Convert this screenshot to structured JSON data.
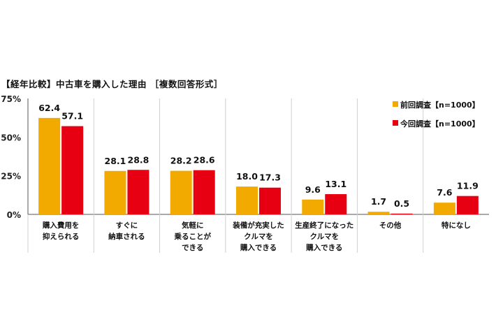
{
  "chart_data": {
    "type": "bar",
    "title": "【経年比較】中古車を購入した理由 ［複数回答形式］",
    "categories": [
      [
        "購入費用を",
        "抑えられる"
      ],
      [
        "すぐに",
        "納車される"
      ],
      [
        "気軽に",
        "乗ることが",
        "できる"
      ],
      [
        "装備が充実した",
        "クルマを",
        "購入できる"
      ],
      [
        "生産終了になった",
        "クルマを",
        "購入できる"
      ],
      [
        "その他"
      ],
      [
        "特になし"
      ]
    ],
    "series": [
      {
        "name": "前回調査【n=1000】",
        "color": "#F2A900",
        "values": [
          62.4,
          28.1,
          28.2,
          18.0,
          9.6,
          1.7,
          7.6
        ]
      },
      {
        "name": "今回調査【n=1000】",
        "color": "#E60012",
        "values": [
          57.1,
          28.8,
          28.6,
          17.3,
          13.1,
          0.5,
          11.9
        ]
      }
    ],
    "ylim": [
      0,
      75
    ],
    "yticks": [
      "0%",
      "25%",
      "50%",
      "75%"
    ],
    "legend": "top-right",
    "grid": "vertical separators"
  }
}
